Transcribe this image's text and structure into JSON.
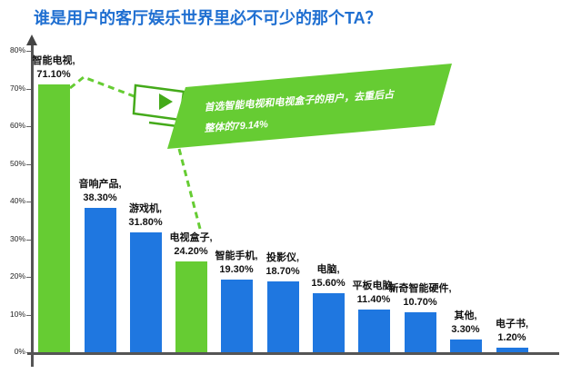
{
  "title": "谁是用户的客厅娱乐世界里必不可少的那个TA？",
  "colors": {
    "title": "#1f6fd1",
    "highlight": "#66cc33",
    "default": "#1f77e0",
    "axis": "#555555"
  },
  "y_ticks": [
    "80%",
    "70%",
    "60%",
    "50%",
    "40%",
    "30%",
    "20%",
    "10%",
    "0%"
  ],
  "bars": [
    {
      "name": "智能电视,",
      "value_label": "71.10%",
      "value": 71.1,
      "highlight": true
    },
    {
      "name": "音响产品,",
      "value_label": "38.30%",
      "value": 38.3,
      "highlight": false
    },
    {
      "name": "游戏机,",
      "value_label": "31.80%",
      "value": 31.8,
      "highlight": false
    },
    {
      "name": "电视盒子,",
      "value_label": "24.20%",
      "value": 24.2,
      "highlight": true
    },
    {
      "name": "智能手机,",
      "value_label": "19.30%",
      "value": 19.3,
      "highlight": false
    },
    {
      "name": "投影仪,",
      "value_label": "18.70%",
      "value": 18.7,
      "highlight": false
    },
    {
      "name": "电脑,",
      "value_label": "15.60%",
      "value": 15.6,
      "highlight": false
    },
    {
      "name": "平板电脑,",
      "value_label": "11.40%",
      "value": 11.4,
      "highlight": false
    },
    {
      "name": "新奇智能硬件,",
      "value_label": "10.70%",
      "value": 10.7,
      "highlight": false
    },
    {
      "name": "其他,",
      "value_label": "3.30%",
      "value": 3.3,
      "highlight": false
    },
    {
      "name": "电子书,",
      "value_label": "1.20%",
      "value": 1.2,
      "highlight": false
    }
  ],
  "callout": {
    "icon": "tv-play-icon",
    "line1": "首选智能电视和电视盒子的用户，去重后占",
    "line2": "整体的79.14%"
  },
  "chart_data": {
    "type": "bar",
    "title": "谁是用户的客厅娱乐世界里必不可少的那个TA？",
    "xlabel": "",
    "ylabel": "",
    "ylim": [
      0,
      80
    ],
    "yticks": [
      "0%",
      "10%",
      "20%",
      "30%",
      "40%",
      "50%",
      "60%",
      "70%",
      "80%"
    ],
    "grid": false,
    "legend": null,
    "categories": [
      "智能电视",
      "音响产品",
      "游戏机",
      "电视盒子",
      "智能手机",
      "投影仪",
      "电脑",
      "平板电脑",
      "新奇智能硬件",
      "其他",
      "电子书"
    ],
    "values": [
      71.1,
      38.3,
      31.8,
      24.2,
      19.3,
      18.7,
      15.6,
      11.4,
      10.7,
      3.3,
      1.2
    ],
    "unit": "%",
    "highlighted_categories": [
      "智能电视",
      "电视盒子"
    ],
    "annotations": [
      "首选智能电视和电视盒子的用户，去重后占整体的79.14%"
    ]
  }
}
